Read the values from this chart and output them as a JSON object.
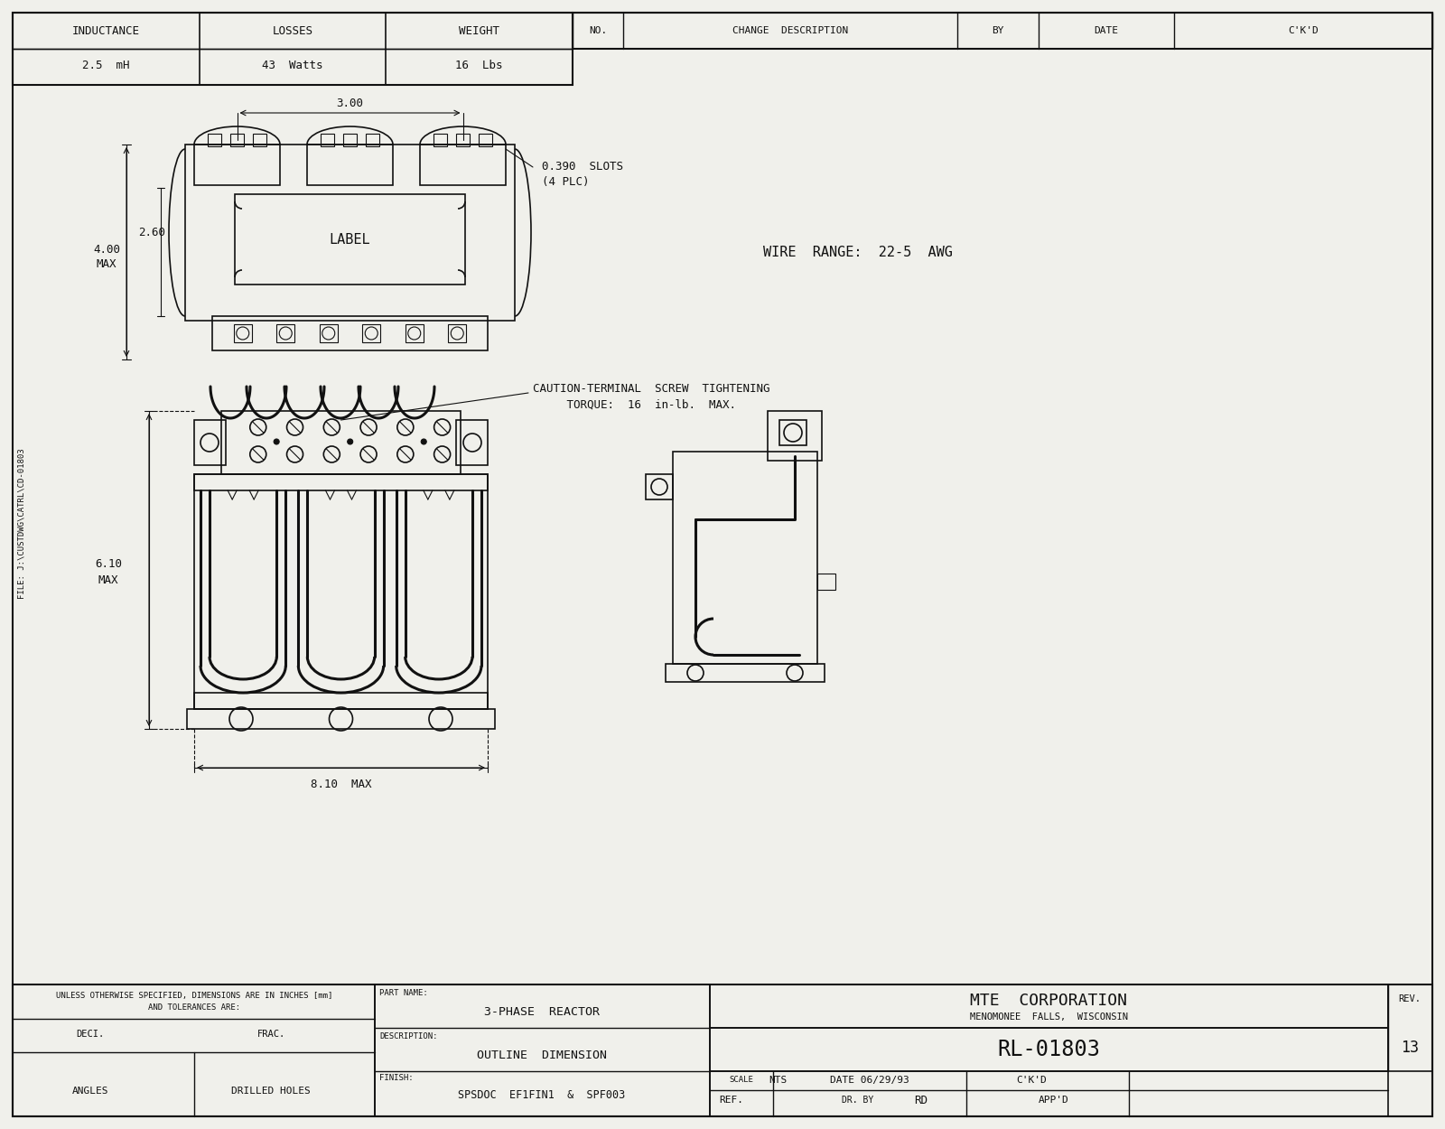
{
  "bg_color": "#f0f0eb",
  "line_color": "#111111",
  "header_table": {
    "cols": [
      "INDUCTANCE",
      "LOSSES",
      "WEIGHT"
    ],
    "vals": [
      "2.5  mH",
      "43  Watts",
      "16  Lbs"
    ]
  },
  "change_table_cols": [
    "NO.",
    "CHANGE  DESCRIPTION",
    "BY",
    "DATE",
    "C'K'D"
  ],
  "side_note": "WIRE  RANGE:  22-5  AWG",
  "caution_text": "CAUTION-TERMINAL  SCREW  TIGHTENING\n     TORQUE:  16  in-lb.  MAX.",
  "file_text": "FILE: J:\\CUSTDWG\\CATRL\\CD-01803",
  "title_block": {
    "company": "MTE  CORPORATION",
    "location": "MENOMONEE  FALLS,  WISCONSIN",
    "part_name_label": "PART NAME:",
    "part_name": "3-PHASE  REACTOR",
    "description_label": "DESCRIPTION:",
    "description": "OUTLINE  DIMENSION",
    "finish_label": "FINISH:",
    "finish": "SPSDOC  EF1FIN1  &  SPF003",
    "part_number": "RL-01803",
    "rev_label": "REV.",
    "rev": "13",
    "scale_label": "SCALE",
    "scale": "NTS",
    "date_label": "DATE 06/29/93",
    "ckd_label": "C'K'D",
    "ref_label": "REF.",
    "drby_label": "DR. BY",
    "drby": "RD",
    "appd_label": "APP'D"
  },
  "tolerances": {
    "line1": "UNLESS OTHERWISE SPECIFIED, DIMENSIONS ARE IN INCHES [mm]",
    "line2": "AND TOLERANCES ARE:",
    "deci_label": "DECI.",
    "frac_label": "FRAC.",
    "angles_label": "ANGLES",
    "drilled_label": "DRILLED HOLES"
  }
}
